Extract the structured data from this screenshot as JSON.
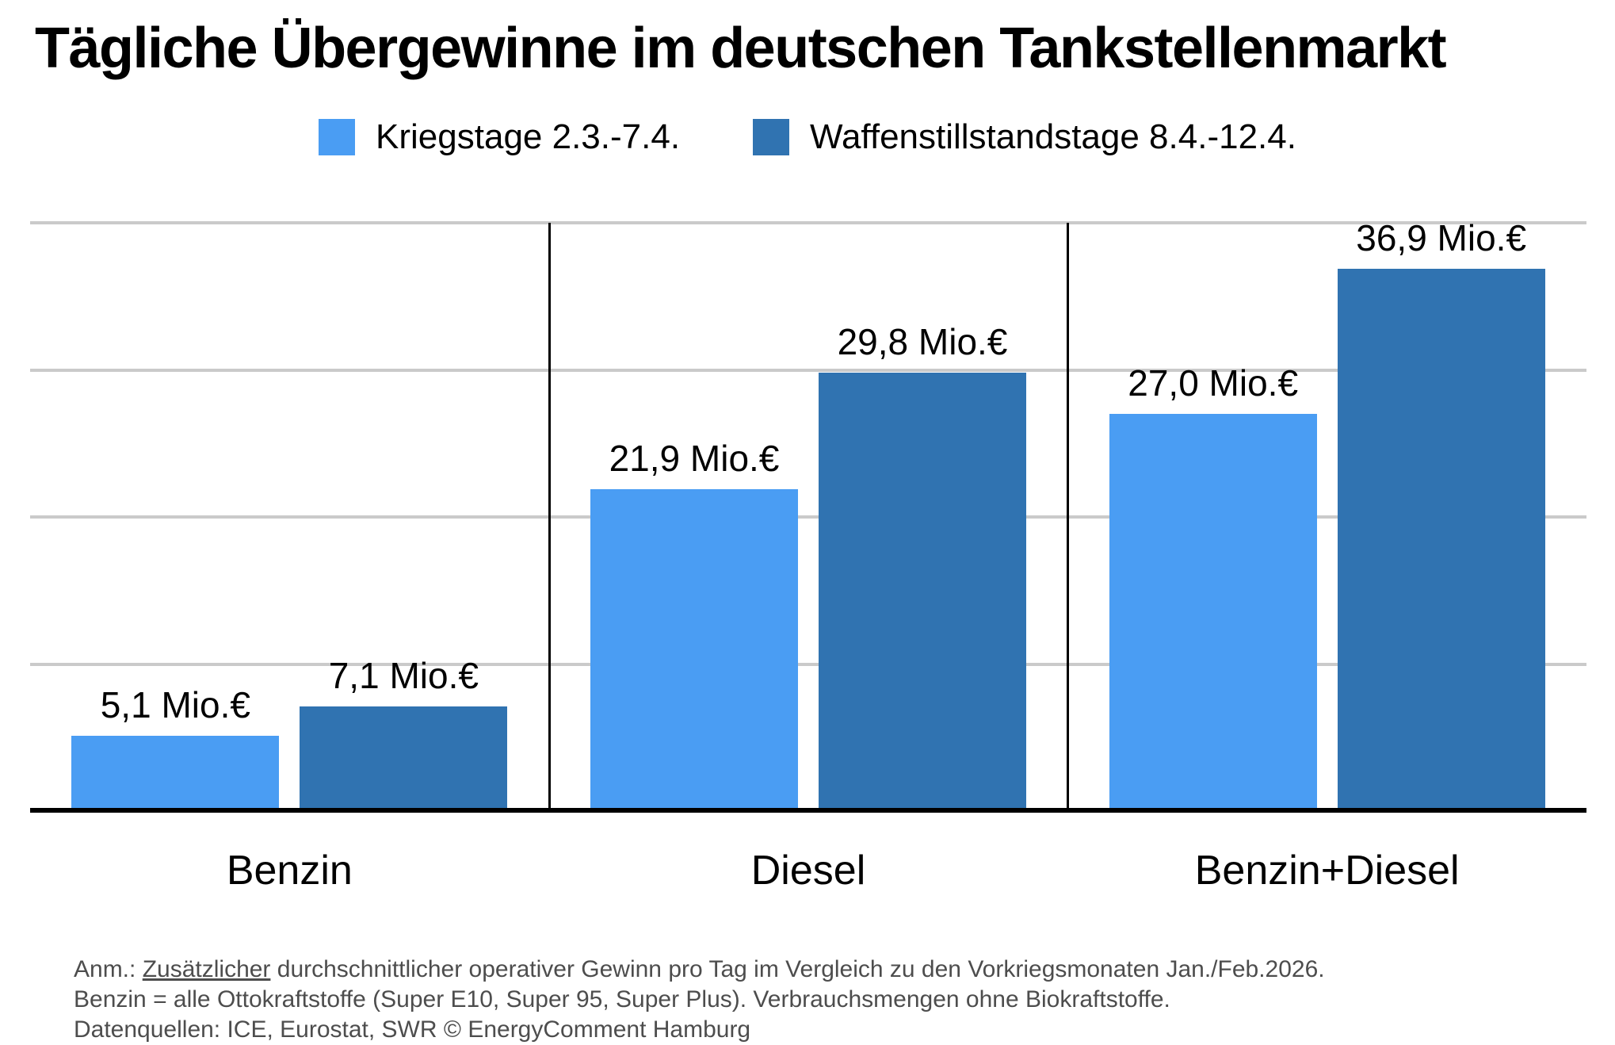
{
  "chart_data": {
    "type": "bar",
    "title": "Tägliche Übergewinne im deutschen Tankstellenmarkt",
    "categories": [
      "Benzin",
      "Diesel",
      "Benzin+Diesel"
    ],
    "series": [
      {
        "name": "Kriegstage 2.3.-7.4.",
        "color": "#4A9DF3",
        "values": [
          5.1,
          21.9,
          27.0
        ],
        "value_labels": [
          "5,1 Mio.€",
          "21,9 Mio.€",
          "27,0 Mio.€"
        ]
      },
      {
        "name": "Waffenstillstandstage 8.4.-12.4.",
        "color": "#3073B1",
        "values": [
          7.1,
          29.8,
          36.9
        ],
        "value_labels": [
          "7,1 Mio.€",
          "29,8 Mio.€",
          "36,9 Mio.€"
        ]
      }
    ],
    "unit": "Mio.€",
    "xlabel": "",
    "ylabel": "",
    "ylim": [
      0,
      40
    ],
    "gridline_values": [
      10,
      20,
      30,
      40
    ],
    "grid": "horizontal, unlabeled",
    "legend_position": "top-center"
  },
  "footer": {
    "note_prefix": "Anm.: ",
    "note_underlined": "Zusätzlicher",
    "note_rest": " durchschnittlicher operativer Gewinn pro Tag im Vergleich zu den Vorkriegsmonaten Jan./Feb.2026.",
    "line2": "Benzin = alle Ottokraftstoffe (Super E10, Super 95, Super Plus). Verbrauchsmengen ohne Biokraftstoffe.",
    "line3": "Datenquellen: ICE, Eurostat, SWR © EnergyComment Hamburg"
  },
  "colors": {
    "background": "#FFFFFF",
    "grid": "#CACACA",
    "axis": "#000000",
    "text": "#000000",
    "footer_text": "#4D4D4D"
  }
}
